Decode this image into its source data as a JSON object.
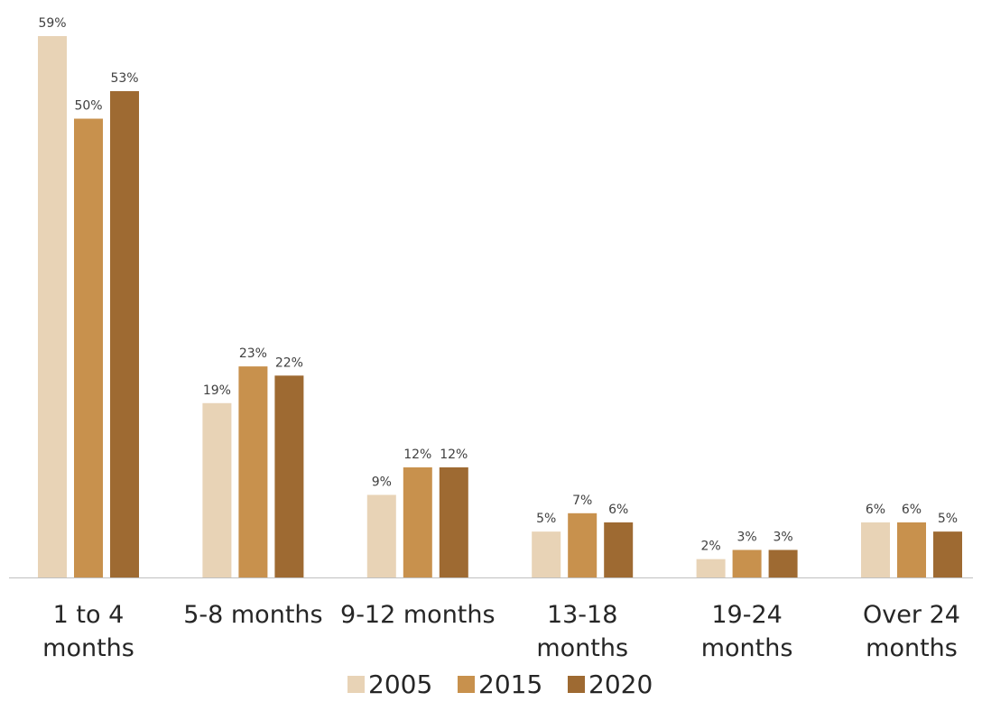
{
  "chart_data": {
    "type": "bar",
    "categories": [
      [
        "1 to 4",
        "months"
      ],
      [
        "5-8 months"
      ],
      [
        "9-12 months"
      ],
      [
        "13-18",
        "months"
      ],
      [
        "19-24",
        "months"
      ],
      [
        "Over 24",
        "months"
      ]
    ],
    "series": [
      {
        "name": "2005",
        "color": "#E8D3B6",
        "values": [
          59,
          19,
          9,
          5,
          2,
          6
        ],
        "labels": [
          "59%",
          "19%",
          "9%",
          "5%",
          "2%",
          "6%"
        ]
      },
      {
        "name": "2015",
        "color": "#C8914D",
        "values": [
          50,
          23,
          12,
          7,
          3,
          6
        ],
        "labels": [
          "50%",
          "23%",
          "12%",
          "7%",
          "3%",
          "6%"
        ]
      },
      {
        "name": "2020",
        "color": "#9E6A32",
        "values": [
          53,
          22,
          12,
          6,
          3,
          5
        ],
        "labels": [
          "53%",
          "22%",
          "12%",
          "6%",
          "3%",
          "5%"
        ]
      }
    ],
    "ylim": [
      0,
      59
    ],
    "grid": false,
    "legend": "bottom-center",
    "axis_color": "#BFBFBF"
  }
}
